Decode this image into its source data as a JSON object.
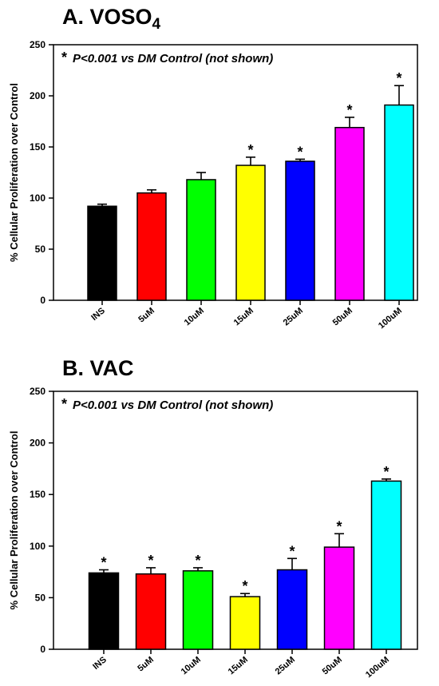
{
  "charts": [
    {
      "title_main": "A. VOSO",
      "title_sub": "4",
      "note_star": "*",
      "note": "P<0.001 vs DM Control (not shown)",
      "chart_data": {
        "type": "bar",
        "title": "A. VOSO4",
        "ylabel": "% Cellular Proliferation over Control",
        "xlabel": "",
        "ylim": [
          0,
          250
        ],
        "yticks": [
          0,
          50,
          100,
          150,
          200,
          250
        ],
        "categories": [
          "INS",
          "5uM",
          "10uM",
          "15uM",
          "25uM",
          "50uM",
          "100uM"
        ],
        "values": [
          92,
          105,
          118,
          132,
          136,
          169,
          191
        ],
        "errors": [
          2,
          3,
          7,
          8,
          2,
          10,
          19
        ],
        "significant": [
          false,
          false,
          false,
          true,
          true,
          true,
          true
        ],
        "colors": [
          "#000000",
          "#ff0000",
          "#00ff00",
          "#ffff00",
          "#0000ff",
          "#ff00ff",
          "#00ffff"
        ],
        "grid": false
      }
    },
    {
      "title_main": "B. VAC",
      "title_sub": "",
      "note_star": "*",
      "note": "P<0.001 vs DM Control (not shown)",
      "chart_data": {
        "type": "bar",
        "title": "B. VAC",
        "ylabel": "% Cellular Proliferation over Control",
        "xlabel": "",
        "ylim": [
          0,
          250
        ],
        "yticks": [
          0,
          50,
          100,
          150,
          200,
          250
        ],
        "categories": [
          "INS",
          "5uM",
          "10uM",
          "15uM",
          "25uM",
          "50uM",
          "100uM"
        ],
        "values": [
          74,
          73,
          76,
          51,
          77,
          99,
          163
        ],
        "errors": [
          3,
          6,
          3,
          3,
          11,
          13,
          2
        ],
        "significant": [
          true,
          true,
          true,
          true,
          true,
          true,
          true
        ],
        "colors": [
          "#000000",
          "#ff0000",
          "#00ff00",
          "#ffff00",
          "#0000ff",
          "#ff00ff",
          "#00ffff"
        ],
        "grid": false
      }
    }
  ]
}
